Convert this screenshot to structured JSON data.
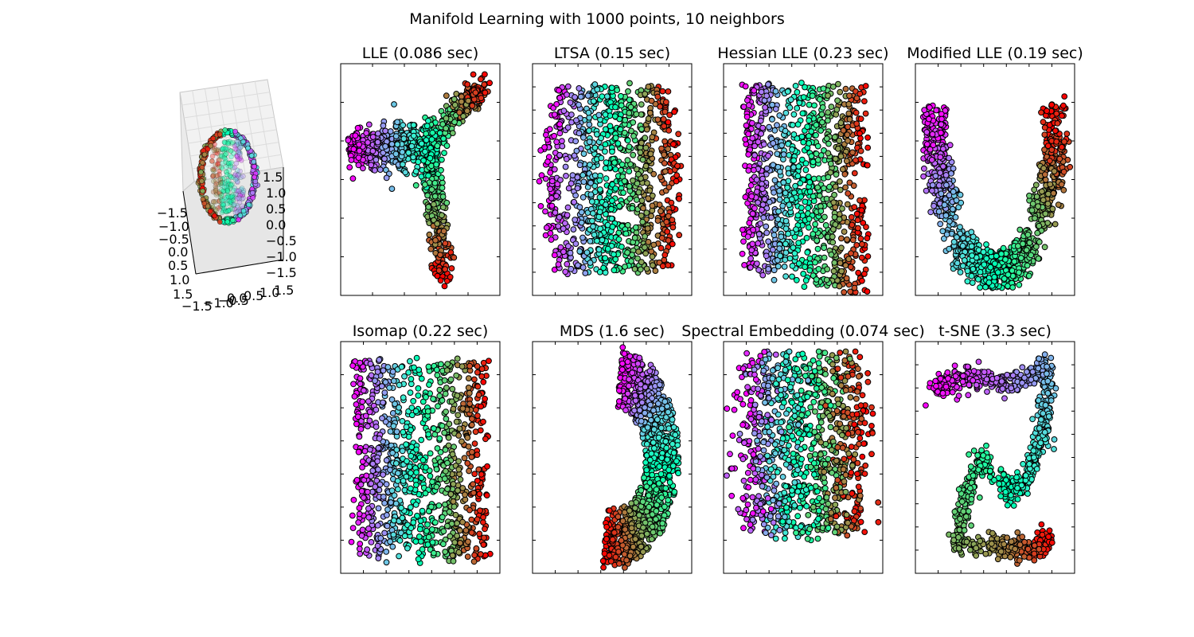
{
  "figure": {
    "suptitle": "Manifold Learning with 1000 points, 10 neighbors"
  },
  "axes3d": {
    "z_ticks": [
      "1.5",
      "1.0",
      "0.5",
      "0.0",
      "−0.5",
      "−1.0",
      "−1.5"
    ],
    "y_ticks": [
      "−1.5",
      "−1.0",
      "−0.5",
      "0.0",
      "0.5",
      "1.0",
      "1.5"
    ],
    "x_ticks": [
      "−1.5",
      "−1.0",
      "−0.5",
      "0.0",
      "0.5",
      "1.0",
      "1.5"
    ],
    "pane_color": "#f2f2f2",
    "grid_color": "#dcdcdc"
  },
  "colors": {
    "colormap": "rainbow",
    "marker_edge": "#000000",
    "axes_frame": "#000000"
  },
  "chart_data": [
    {
      "type": "scatter",
      "title": "LLE (0.086 sec)",
      "shape": "lle",
      "n_points": 1000,
      "xticks": 5,
      "yticks": 6,
      "grid": false
    },
    {
      "type": "scatter",
      "title": "LTSA (0.15 sec)",
      "shape": "ltsa",
      "n_points": 1000,
      "xticks": 7,
      "yticks": 10,
      "grid": false
    },
    {
      "type": "scatter",
      "title": "Hessian LLE (0.23 sec)",
      "shape": "hessian",
      "n_points": 1000,
      "xticks": 7,
      "yticks": 10,
      "grid": false
    },
    {
      "type": "scatter",
      "title": "Modified LLE (0.19 sec)",
      "shape": "modified",
      "n_points": 1000,
      "xticks": 7,
      "yticks": 6,
      "grid": false
    },
    {
      "type": "scatter",
      "title": "Isomap (0.22 sec)",
      "shape": "isomap",
      "n_points": 1000,
      "xticks": 7,
      "yticks": 7,
      "grid": false
    },
    {
      "type": "scatter",
      "title": "MDS (1.6 sec)",
      "shape": "mds",
      "n_points": 1000,
      "xticks": 7,
      "yticks": 7,
      "grid": false
    },
    {
      "type": "scatter",
      "title": "Spectral Embedding (0.074 sec)",
      "shape": "spectral",
      "n_points": 1000,
      "xticks": 7,
      "yticks": 7,
      "grid": false
    },
    {
      "type": "scatter",
      "title": "t-SNE (3.3 sec)",
      "shape": "tsne",
      "n_points": 1000,
      "xticks": 7,
      "yticks": 10,
      "grid": false
    }
  ]
}
